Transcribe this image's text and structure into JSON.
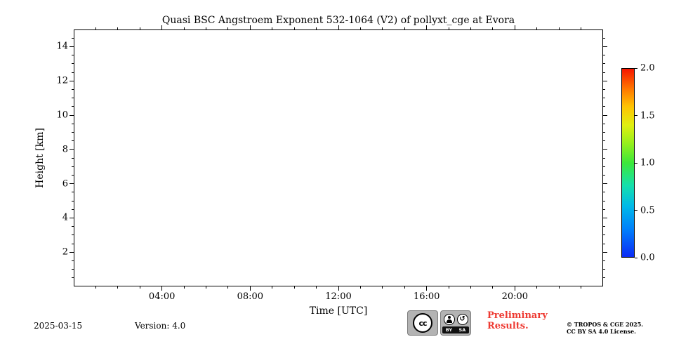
{
  "chart_data": {
    "type": "heatmap",
    "title": "Quasi BSC Angstroem Exponent 532-1064 (V2) of pollyxt_cge at Evora",
    "xlabel": "Time [UTC]",
    "ylabel": "Height [km]",
    "x_axis": {
      "range_hours": [
        0,
        24
      ],
      "major_tick_hours": [
        4,
        8,
        12,
        16,
        20
      ],
      "major_tick_labels": [
        "04:00",
        "08:00",
        "12:00",
        "16:00",
        "20:00"
      ],
      "minor_tick_every_hours": 1
    },
    "y_axis": {
      "range_km": [
        0,
        15
      ],
      "major_tick_km": [
        2,
        4,
        6,
        8,
        10,
        12,
        14
      ],
      "major_tick_labels": [
        "2",
        "4",
        "6",
        "8",
        "10",
        "12",
        "14"
      ],
      "minor_tick_every_km": 0.5
    },
    "values": [],
    "grid": false,
    "colorbar": {
      "min": 0.0,
      "max": 2.0,
      "tick_values": [
        0.0,
        0.5,
        1.0,
        1.5,
        2.0
      ],
      "tick_labels": [
        "0.0",
        "0.5",
        "1.0",
        "1.5",
        "2.0"
      ],
      "colormap": "jet",
      "gradient_stops_bottom_to_top": [
        "#0b2af5 0%",
        "#0081fb 15%",
        "#00b9e8 27%",
        "#15e0ac 38%",
        "#3ce83a 50%",
        "#93f01d 60%",
        "#e0ef10 70%",
        "#ffc302 80%",
        "#ff7a00 89%",
        "#f61600 100%"
      ]
    }
  },
  "footer": {
    "date": "2025-03-15",
    "version": "Version: 4.0",
    "preliminary_line1": "Preliminary",
    "preliminary_line2": "Results.",
    "copyright_line1": "© TROPOS & CGE 2025.",
    "copyright_line2": "CC BY SA 4.0 License.",
    "license_badge": {
      "cc_label": "cc",
      "by_label": "BY",
      "sa_label": "SA",
      "sa_arrow": "↺"
    }
  },
  "colors": {
    "preliminary_red": "#ee3b33",
    "badge_gray": "#b3b3b3",
    "axis_black": "#000000"
  }
}
